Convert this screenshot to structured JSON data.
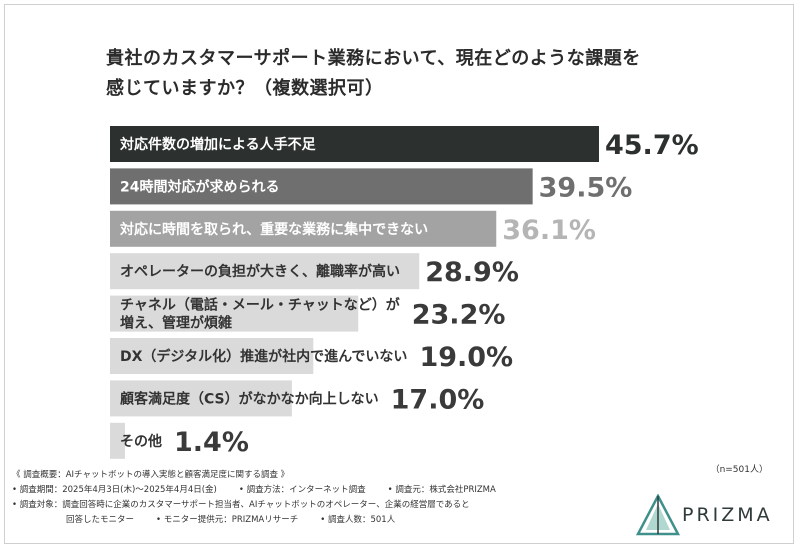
{
  "title_lines": [
    "貴社のカスタマーサポート業務において、現在どのような課題を",
    "感じていますか？（複数選択可）"
  ],
  "chart_data": {
    "type": "bar",
    "orientation": "horizontal",
    "categories": [
      [
        "対応件数の増加による人手不足"
      ],
      [
        "24時間対応が求められる"
      ],
      [
        "対応に時間を取られ、重要な業務に集中できない"
      ],
      [
        "オペレーターの負担が大きく、離職率が高い"
      ],
      [
        "チャネル（電話・メール・チャットなど）が",
        "増え、管理が煩雑"
      ],
      [
        "DX（デジタル化）推進が社内で進んでいない"
      ],
      [
        "顧客満足度（CS）がなかなか向上しない"
      ],
      [
        "その他"
      ]
    ],
    "values": [
      45.7,
      39.5,
      36.1,
      28.9,
      23.2,
      19.0,
      17.0,
      1.4
    ],
    "value_labels": [
      "45.7%",
      "39.5%",
      "36.1%",
      "28.9%",
      "23.2%",
      "19.0%",
      "17.0%",
      "1.4%"
    ],
    "bar_colors": [
      "#2c302e",
      "#6f6f6f",
      "#a3a3a3",
      "#dadada",
      "#dadada",
      "#dadada",
      "#dadada",
      "#dadada"
    ],
    "label_colors": [
      "#ffffff",
      "#ffffff",
      "#ffffff",
      "#333333",
      "#333333",
      "#333333",
      "#333333",
      "#333333"
    ],
    "value_colors": [
      "#2c302e",
      "#6f6f6f",
      "#b5b5b5",
      "#3a3a3a",
      "#3a3a3a",
      "#3a3a3a",
      "#3a3a3a",
      "#3a3a3a"
    ],
    "xlim": [
      0,
      100
    ],
    "grid": false,
    "legend": "none"
  },
  "sample_size": "（n=501人）",
  "notes": {
    "overview": "《 調査概要：AIチャットボットの導入実態と顧客満足度に関する調査 》",
    "period": "• 調査期間：2025年4月3日(木)〜2025年4月4日(金)",
    "method": "• 調査方法：インターネット調査",
    "source": "• 調査元：株式会社PRIZMA",
    "target": "• 調査対象：調査回答時に企業のカスタマーサポート担当者、AIチャットボットのオペレーター、企業の経営層であると",
    "target_cont": "回答したモニター",
    "provider": "• モニター提供元：PRIZMAリサーチ",
    "respondents": "• 調査人数：501人"
  },
  "logo": {
    "text": "PRIZMA",
    "colors": [
      "#3f8f8a",
      "#2f3a3a",
      "#6fb7a9"
    ]
  }
}
